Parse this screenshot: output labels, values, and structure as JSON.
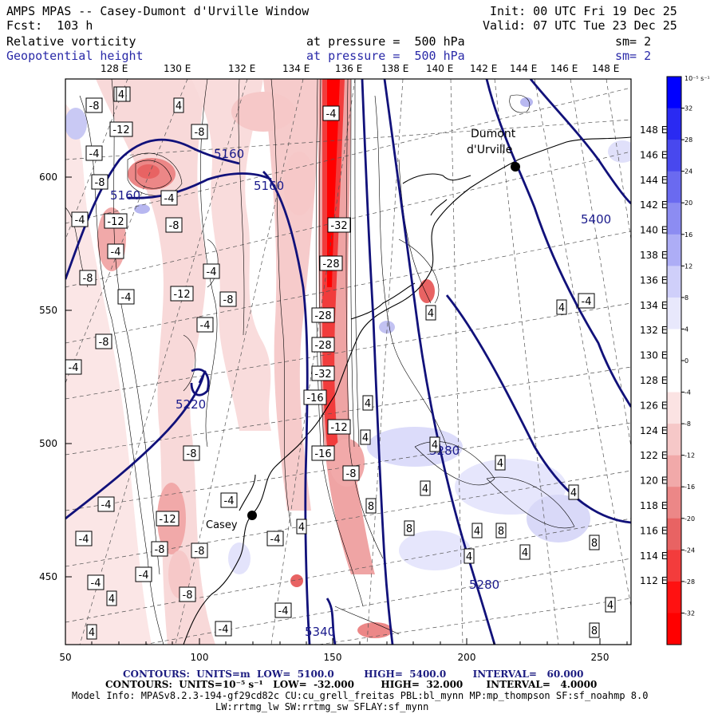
{
  "header": {
    "title": "AMPS MPAS -- Casey-Dumont d'Urville Window",
    "forecast": "Fcst:  103 h",
    "init": "Init: 00 UTC Fri 19 Dec 25",
    "valid": "Valid: 07 UTC Tue 23 Dec 25",
    "field1_name": "Relative vorticity",
    "field1_level": "at pressure =  500 hPa",
    "field1_sm": "sm= 2",
    "field2_name": "Geopotential height",
    "field2_level": "at pressure =  500 hPa",
    "field2_sm": "sm= 2"
  },
  "map": {
    "top_lon_labels": [
      "128 E",
      "130 E",
      "132 E",
      "134 E",
      "136 E",
      "138 E",
      "140 E",
      "142 E",
      "144 E",
      "146 E",
      "148 E"
    ],
    "right_lon_labels": [
      "148 E",
      "146 E",
      "144 E",
      "142 E",
      "140 E",
      "138 E",
      "136 E",
      "134 E",
      "132 E",
      "130 E",
      "128 E",
      "126 E",
      "124 E",
      "122 E",
      "120 E",
      "118 E",
      "116 E",
      "114 E",
      "112 E"
    ],
    "x_ticks": [
      "50",
      "100",
      "150",
      "200",
      "250"
    ],
    "y_ticks": [
      "600",
      "550",
      "500",
      "450"
    ],
    "stations": [
      {
        "name": "Dumont d'Urville",
        "label1": "Dumont",
        "label2": "d'Urville"
      },
      {
        "name": "Casey",
        "label1": "Casey",
        "label2": ""
      }
    ],
    "height_contour_labels": [
      "5160",
      "5160",
      "5160",
      "5220",
      "5280",
      "5280",
      "5400",
      "5340"
    ],
    "vorticity_labels": [
      "-8",
      "-4",
      "4",
      "-12",
      "-8",
      "-4",
      "-8",
      "-4",
      "-4",
      "-12",
      "-8",
      "-4",
      "-8",
      "-4",
      "-4",
      "-12",
      "-8",
      "-4",
      "-8",
      "-4",
      "-32",
      "-28",
      "-28",
      "-28",
      "-32",
      "-16",
      "-12",
      "-16",
      "-8",
      "-8",
      "-4",
      "4",
      "4",
      "8",
      "8",
      "8",
      "4",
      "4",
      "4",
      "4",
      "8",
      "8",
      "4",
      "4",
      "4",
      "4",
      "4",
      "-4",
      "-4",
      "-8",
      "-12",
      "-8",
      "-4",
      "-4",
      "4",
      "4",
      "4",
      "-4",
      "-4",
      "-4",
      "-8",
      "-4",
      "-4",
      "4",
      "4"
    ]
  },
  "colorbar": {
    "unit": "10⁻⁵ s⁻¹",
    "labels": [
      "32",
      "28",
      "24",
      "20",
      "16",
      "12",
      "8",
      "4",
      "0",
      "-4",
      "-8",
      "-12",
      "-16",
      "-20",
      "-24",
      "-28",
      "-32"
    ],
    "colors": [
      "#0000ff",
      "#2a2af2",
      "#4848ee",
      "#6a6af0",
      "#8c8cf2",
      "#adadf6",
      "#cfcffa",
      "#e8e8fc",
      "#ffffff",
      "#ffffff",
      "#fbe3e3",
      "#f6c8c8",
      "#f1a9a9",
      "#ec8787",
      "#e86363",
      "#f33c3c",
      "#ff1111",
      "#ff0000"
    ]
  },
  "footer": {
    "contours1": "CONTOURS:  UNITS=m  LOW=  5100.0         HIGH=  5400.0        INTERVAL=   60.000",
    "contours2": "CONTOURS:  UNITS=10⁻⁵ s⁻¹   LOW=  -32.000        HIGH=  32.000       INTERVAL=   4.0000",
    "model_info": "Model Info: MPASv8.2.3-194-gf29cd82c CU:cu_grell_freitas PBL:bl_mynn MP:mp_thompson SF:sf_noahmp 8.0",
    "model_info2": "LW:rrtmg_lw SW:rrtmg_sw SFLAY:sf_mynn"
  }
}
